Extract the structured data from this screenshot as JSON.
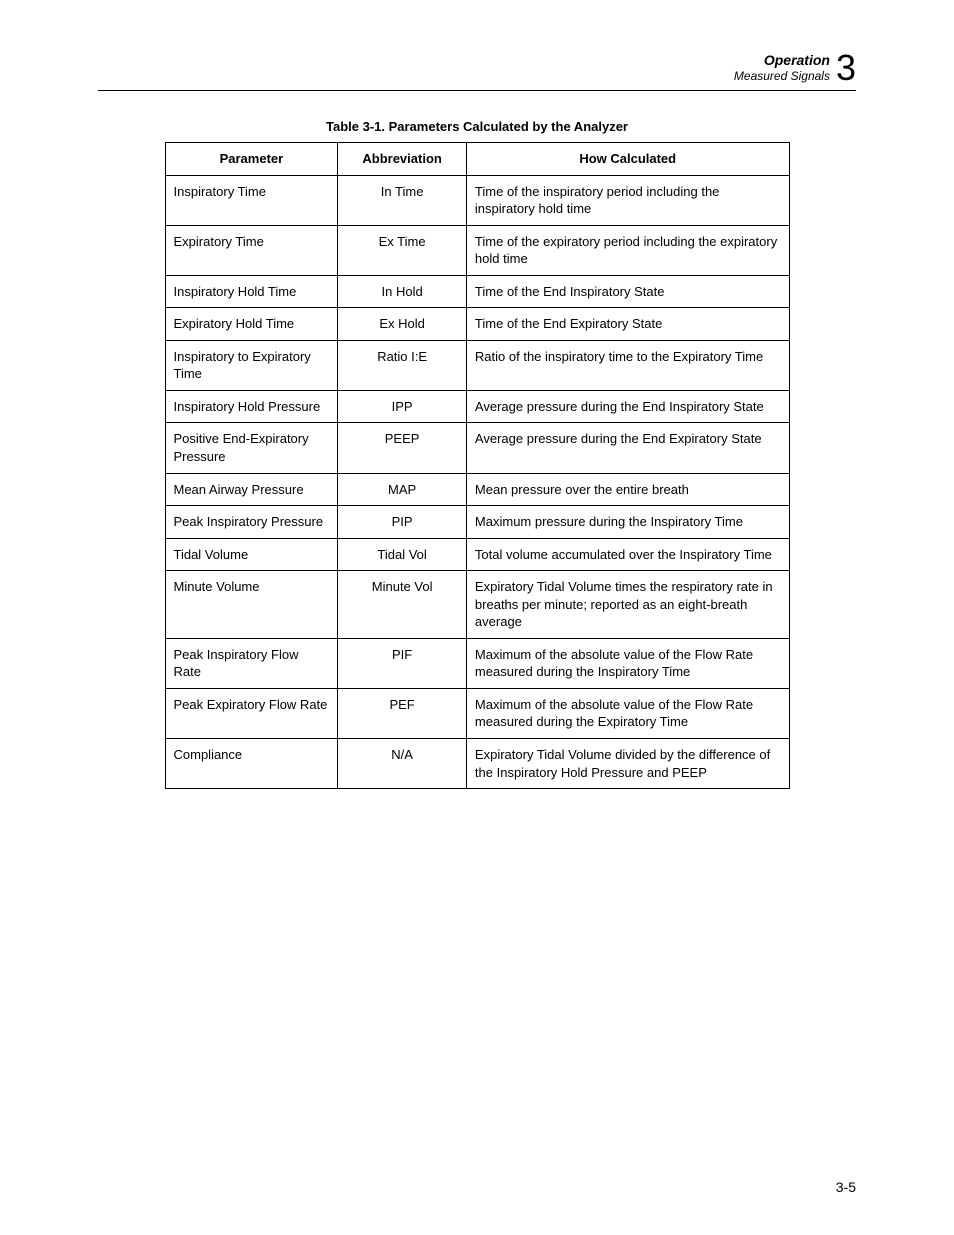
{
  "header": {
    "title": "Operation",
    "subtitle": "Measured Signals",
    "chapter_number": "3"
  },
  "table": {
    "caption": "Table 3-1. Parameters Calculated by the Analyzer",
    "columns": [
      "Parameter",
      "Abbreviation",
      "How Calculated"
    ],
    "rows": [
      [
        "Inspiratory Time",
        "In Time",
        "Time of the inspiratory period including the inspiratory hold time"
      ],
      [
        "Expiratory Time",
        "Ex Time",
        "Time of the expiratory period including the expiratory hold time"
      ],
      [
        "Inspiratory Hold Time",
        "In Hold",
        "Time of the End Inspiratory State"
      ],
      [
        "Expiratory Hold Time",
        "Ex Hold",
        "Time of the End Expiratory State"
      ],
      [
        "Inspiratory to Expiratory Time",
        "Ratio  I:E",
        "Ratio of the inspiratory time to the Expiratory Time"
      ],
      [
        "Inspiratory Hold Pressure",
        "IPP",
        "Average pressure during the End Inspiratory State"
      ],
      [
        "Positive End-Expiratory Pressure",
        "PEEP",
        "Average pressure during the End Expiratory State"
      ],
      [
        "Mean Airway Pressure",
        "MAP",
        "Mean pressure over the entire breath"
      ],
      [
        "Peak Inspiratory Pressure",
        "PIP",
        "Maximum pressure during the Inspiratory Time"
      ],
      [
        "Tidal Volume",
        "Tidal Vol",
        "Total volume accumulated over the Inspiratory Time"
      ],
      [
        "Minute Volume",
        "Minute Vol",
        "Expiratory Tidal Volume times the respiratory rate in breaths per minute; reported as an eight-breath average"
      ],
      [
        "Peak Inspiratory Flow Rate",
        "PIF",
        "Maximum of the absolute value of the Flow Rate measured during the Inspiratory Time"
      ],
      [
        "Peak Expiratory Flow Rate",
        "PEF",
        "Maximum of the absolute value of the Flow Rate measured during the Expiratory Time"
      ],
      [
        "Compliance",
        "N/A",
        "Expiratory Tidal Volume divided by the difference of the Inspiratory Hold Pressure and PEEP"
      ]
    ]
  },
  "page_number": "3-5"
}
